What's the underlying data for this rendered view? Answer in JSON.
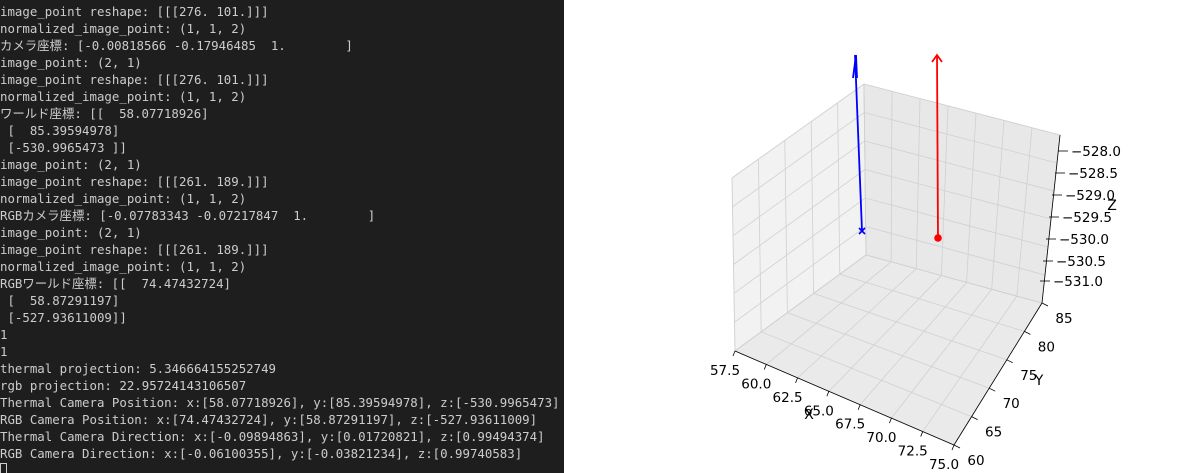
{
  "terminal": {
    "lines": [
      "image_point reshape: [[[276. 101.]]]",
      "normalized_image_point: (1, 1, 2)",
      "カメラ座標: [-0.00818566 -0.17946485  1.        ]",
      "image_point: (2, 1)",
      "image_point reshape: [[[276. 101.]]]",
      "normalized_image_point: (1, 1, 2)",
      "ワールド座標: [[  58.07718926]",
      " [  85.39594978]",
      " [-530.9965473 ]]",
      "image_point: (2, 1)",
      "image_point reshape: [[[261. 189.]]]",
      "normalized_image_point: (1, 1, 2)",
      "RGBカメラ座標: [-0.07783343 -0.07217847  1.        ]",
      "image_point: (2, 1)",
      "image_point reshape: [[[261. 189.]]]",
      "normalized_image_point: (1, 1, 2)",
      "RGBワールド座標: [[  74.47432724]",
      " [  58.87291197]",
      " [-527.93611009]]",
      "1",
      "1",
      "thermal projection: 5.346664155252749",
      "rgb projection: 22.95724143106507",
      "Thermal Camera Position: x:[58.07718926], y:[85.39594978], z:[-530.9965473]",
      "RGB Camera Position: x:[74.47432724], y:[58.87291197], z:[-527.93611009]",
      "Thermal Camera Direction: x:[-0.09894863], y:[0.01720821], z:[0.99494374]",
      "RGB Camera Direction: x:[-0.06100355], y:[-0.03821234], z:[0.99740583]"
    ]
  },
  "chart_data": {
    "type": "scatter",
    "projection": "3d",
    "xlabel": "X",
    "ylabel": "Y",
    "zlabel": "Z",
    "xticks": [
      "57.5",
      "60.0",
      "62.5",
      "65.0",
      "67.5",
      "70.0",
      "72.5",
      "75.0"
    ],
    "yticks": [
      "60",
      "65",
      "70",
      "75",
      "80",
      "85"
    ],
    "zticks": [
      "−528.0",
      "−528.5",
      "−529.0",
      "−529.5",
      "−530.0",
      "−530.5",
      "−531.0"
    ],
    "xlim": [
      57.5,
      75.0
    ],
    "ylim": [
      60,
      85
    ],
    "zlim": [
      -531.0,
      -528.0
    ],
    "grid": true,
    "series": [
      {
        "marker": "x",
        "color": "#0000ff",
        "point": {
          "x": 58.07718926,
          "y": 85.39594978,
          "z": -530.9965473
        },
        "direction": {
          "x": -0.09894863,
          "y": 0.01720821,
          "z": 0.99494374
        }
      },
      {
        "marker": "o",
        "color": "#ff0000",
        "point": {
          "x": 74.47432724,
          "y": 58.87291197,
          "z": -527.93611009
        },
        "direction": {
          "x": -0.06100355,
          "y": -0.03821234,
          "z": 0.99740583
        }
      }
    ]
  }
}
